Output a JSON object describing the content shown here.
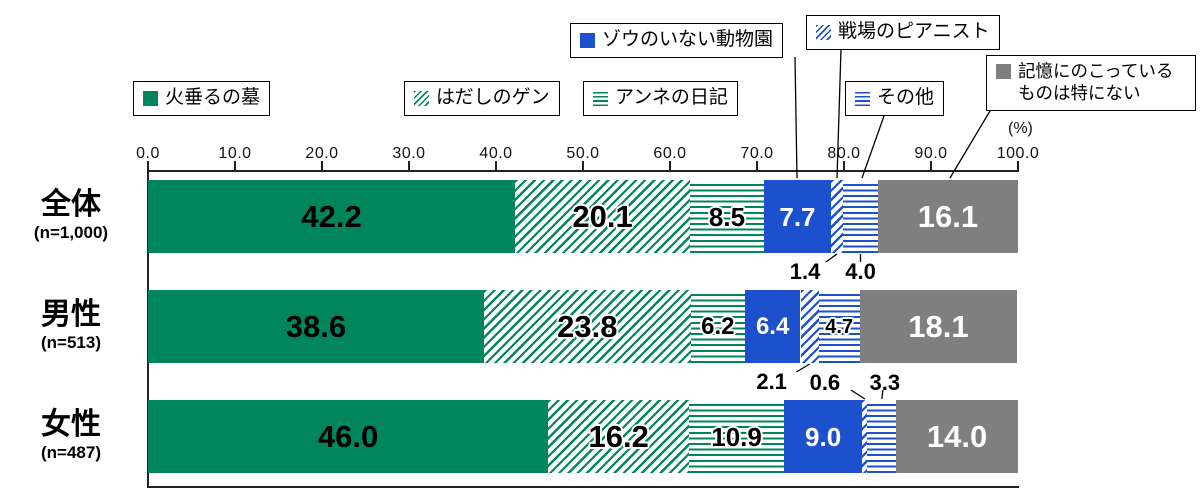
{
  "chart_data": {
    "type": "bar",
    "variant": "stacked-horizontal",
    "unit_label": "(%)",
    "xlim": [
      0,
      100
    ],
    "x_ticks": [
      "0.0",
      "10.0",
      "20.0",
      "30.0",
      "40.0",
      "50.0",
      "60.0",
      "70.0",
      "80.0",
      "90.0",
      "100.0"
    ],
    "categories": [
      {
        "label": "全体",
        "n_label": "(n=1,000)"
      },
      {
        "label": "男性",
        "n_label": "(n=513)"
      },
      {
        "label": "女性",
        "n_label": "(n=487)"
      }
    ],
    "series": [
      {
        "name": "火垂るの墓",
        "color": "#00855c",
        "pattern": "solid",
        "label_color": "#000000",
        "values": [
          42.2,
          38.6,
          46.0
        ]
      },
      {
        "name": "はだしのゲン",
        "color": "#00855c",
        "pattern": "diag",
        "label_color": "#000000",
        "values": [
          20.1,
          23.8,
          16.2
        ]
      },
      {
        "name": "アンネの日記",
        "color": "#00855c",
        "pattern": "hlines",
        "label_color": "#000000",
        "values": [
          8.5,
          6.2,
          10.9
        ]
      },
      {
        "name": "ゾウのいない動物園",
        "color": "#1c50cc",
        "pattern": "solid",
        "label_color": "#ffffff",
        "values": [
          7.7,
          6.4,
          9.0
        ]
      },
      {
        "name": "戦場のピアニスト",
        "color": "#1c50cc",
        "pattern": "diag",
        "label_color": "#000000",
        "values": [
          1.4,
          2.1,
          0.6
        ]
      },
      {
        "name": "その他",
        "color": "#1c50cc",
        "pattern": "hlines",
        "label_color": "#000000",
        "values": [
          4.0,
          4.7,
          3.3
        ]
      },
      {
        "name": "記憶にのこっているものは特にない",
        "color": "#7f7f7f",
        "pattern": "solid",
        "label_color": "#ffffff",
        "values": [
          16.1,
          18.1,
          14.0
        ]
      }
    ]
  }
}
